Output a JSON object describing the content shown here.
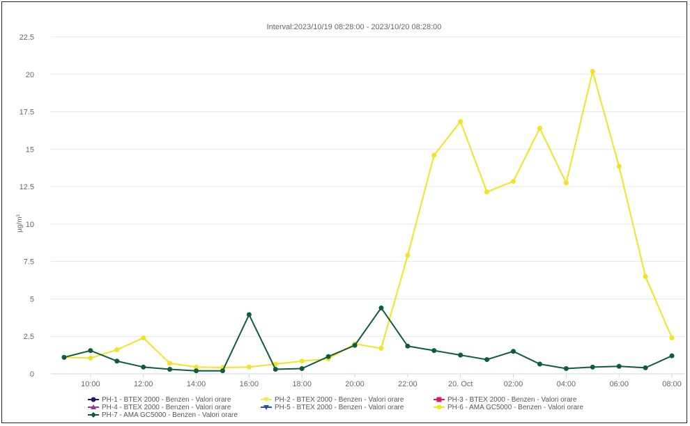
{
  "chart_data": {
    "type": "line",
    "subtitle": "Interval:2023/10/19 08:28:00 - 2023/10/20 08:28:00",
    "ylabel": "µg/m³",
    "ylim": [
      0,
      22.5
    ],
    "y_ticks": [
      "0",
      "2.5",
      "5",
      "7.5",
      "10",
      "12.5",
      "15",
      "17.5",
      "20",
      "22.5"
    ],
    "x_hours": [
      "09:00",
      "10:00",
      "11:00",
      "12:00",
      "13:00",
      "14:00",
      "15:00",
      "16:00",
      "17:00",
      "18:00",
      "19:00",
      "20:00",
      "21:00",
      "22:00",
      "23:00",
      "00:00",
      "01:00",
      "02:00",
      "03:00",
      "04:00",
      "05:00",
      "06:00",
      "07:00",
      "08:00"
    ],
    "x_tick_labels": [
      "10:00",
      "12:00",
      "14:00",
      "16:00",
      "18:00",
      "20:00",
      "22:00",
      "20. Oct",
      "02:00",
      "04:00",
      "06:00",
      "08:00"
    ],
    "grid": true,
    "legend_position": "bottom",
    "series": [
      {
        "name": "PH-1 - BTEX 2000 - Benzen - Valori orare",
        "color": "#1a1a6e",
        "marker": "circle",
        "values": []
      },
      {
        "name": "PH-2 - BTEX 2000 - Benzen - Valori orare",
        "color": "#f5e84a",
        "marker": "triangle-down",
        "values": []
      },
      {
        "name": "PH-3 - BTEX 2000 - Benzen - Valori orare",
        "color": "#d81b60",
        "marker": "square",
        "values": []
      },
      {
        "name": "PH-4 - BTEX 2000 - Benzen - Valori orare",
        "color": "#8e3a8e",
        "marker": "triangle",
        "values": []
      },
      {
        "name": "PH-5 - BTEX 2000 - Benzen - Valori orare",
        "color": "#2a4ea0",
        "marker": "triangle-down",
        "values": []
      },
      {
        "name": "PH-6 - AMA GC5000 - Benzen - Valori orare",
        "color": "#f3e221",
        "marker": "circle",
        "values": [
          1.1,
          1.05,
          1.6,
          2.4,
          0.7,
          0.45,
          0.42,
          0.45,
          0.65,
          0.85,
          1.0,
          2.0,
          1.7,
          7.9,
          14.6,
          16.85,
          12.15,
          12.85,
          16.4,
          12.75,
          20.2,
          13.85,
          6.5,
          2.4
        ]
      },
      {
        "name": "PH-7 - AMA GC5000 - Benzen - Valori orare",
        "color": "#0d5c3a",
        "marker": "diamond",
        "values": [
          1.1,
          1.55,
          0.85,
          0.45,
          0.3,
          0.2,
          0.2,
          3.95,
          0.3,
          0.35,
          1.15,
          1.9,
          4.4,
          1.85,
          1.55,
          1.25,
          0.95,
          1.5,
          0.65,
          0.35,
          0.45,
          0.5,
          0.4,
          1.2
        ]
      }
    ]
  }
}
